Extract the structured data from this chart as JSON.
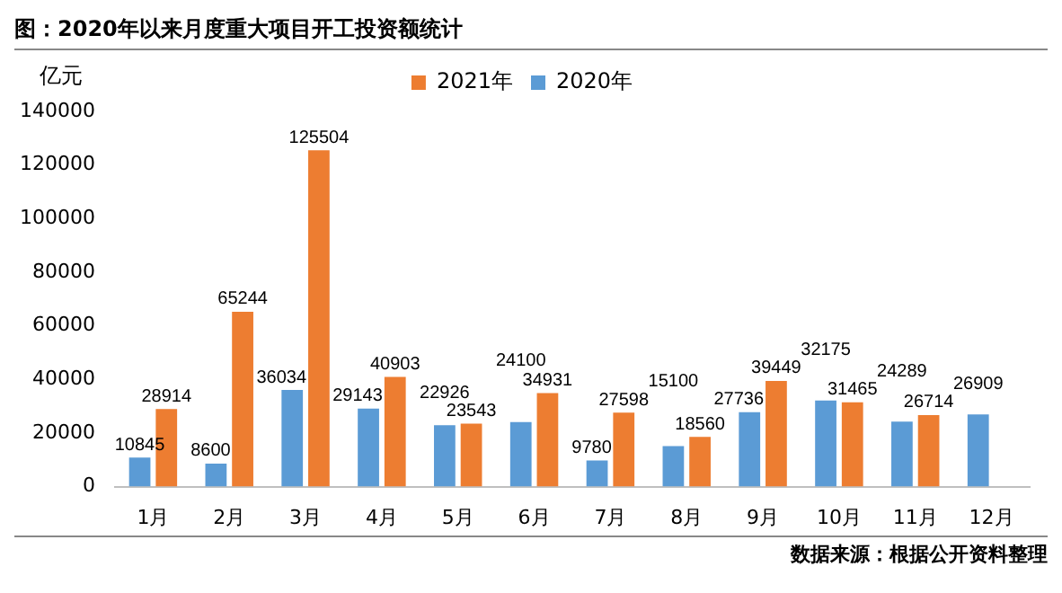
{
  "chart_data": {
    "type": "bar",
    "title": "图：2020年以来月度重大项目开工投资额统计",
    "ylabel": "亿元",
    "categories": [
      "1月",
      "2月",
      "3月",
      "4月",
      "5月",
      "6月",
      "7月",
      "8月",
      "9月",
      "10月",
      "11月",
      "12月"
    ],
    "series": [
      {
        "name": "2020年",
        "color": "#5b9bd5",
        "values": [
          10845,
          8600,
          36034,
          29143,
          22926,
          24100,
          9780,
          15100,
          27736,
          32175,
          24289,
          26909
        ]
      },
      {
        "name": "2021年",
        "color": "#ed7d31",
        "values": [
          28914,
          65244,
          125504,
          40903,
          23543,
          34931,
          27598,
          18560,
          39449,
          31465,
          26714,
          null
        ]
      }
    ],
    "ylim": [
      0,
      140000
    ],
    "yticks": [
      0,
      20000,
      40000,
      60000,
      80000,
      100000,
      120000,
      140000
    ],
    "grid": false,
    "legend": "top",
    "data_labels": true,
    "annotations": [
      "数据来源：根据公开资料整理"
    ]
  }
}
